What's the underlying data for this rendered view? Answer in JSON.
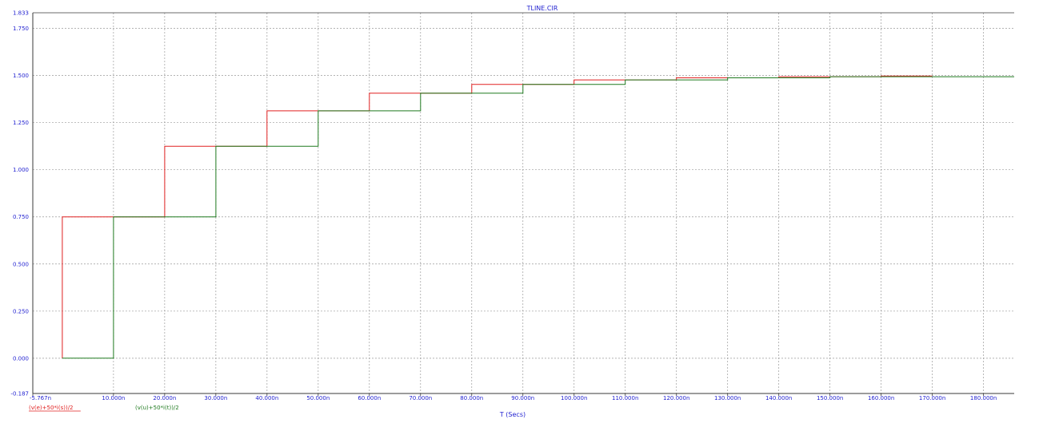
{
  "chart_data": {
    "type": "line",
    "title": "TLINE.CIR",
    "xlabel": "T (Secs)",
    "ylabel": "",
    "xlim": [
      -5.767e-09,
      1.86e-07
    ],
    "ylim": [
      -0.187,
      1.833
    ],
    "grid": true,
    "x_ticks": [
      {
        "value": -5.767e-09,
        "label": "-5.767n"
      },
      {
        "value": 1e-08,
        "label": "10.000n"
      },
      {
        "value": 2e-08,
        "label": "20.000n"
      },
      {
        "value": 3e-08,
        "label": "30.000n"
      },
      {
        "value": 4e-08,
        "label": "40.000n"
      },
      {
        "value": 5e-08,
        "label": "50.000n"
      },
      {
        "value": 6e-08,
        "label": "60.000n"
      },
      {
        "value": 7e-08,
        "label": "70.000n"
      },
      {
        "value": 8e-08,
        "label": "80.000n"
      },
      {
        "value": 9e-08,
        "label": "90.000n"
      },
      {
        "value": 1e-07,
        "label": "100.000n"
      },
      {
        "value": 1.1e-07,
        "label": "110.000n"
      },
      {
        "value": 1.2e-07,
        "label": "120.000n"
      },
      {
        "value": 1.3e-07,
        "label": "130.000n"
      },
      {
        "value": 1.4e-07,
        "label": "140.000n"
      },
      {
        "value": 1.5e-07,
        "label": "150.000n"
      },
      {
        "value": 1.6e-07,
        "label": "160.000n"
      },
      {
        "value": 1.7e-07,
        "label": "170.000n"
      },
      {
        "value": 1.8e-07,
        "label": "180.000n"
      }
    ],
    "y_ticks": [
      {
        "value": 1.833,
        "label": "1.833"
      },
      {
        "value": 1.75,
        "label": "1.750"
      },
      {
        "value": 1.5,
        "label": "1.500"
      },
      {
        "value": 1.25,
        "label": "1.250"
      },
      {
        "value": 1.0,
        "label": "1.000"
      },
      {
        "value": 0.75,
        "label": "0.750"
      },
      {
        "value": 0.5,
        "label": "0.500"
      },
      {
        "value": 0.25,
        "label": "0.250"
      },
      {
        "value": 0.0,
        "label": "0.000"
      },
      {
        "value": -0.187,
        "label": "-0.187"
      }
    ],
    "series": [
      {
        "name": "(v(e)+50*i(s))/2",
        "color": "#e02020",
        "x": [
          0,
          0,
          2e-08,
          2e-08,
          4e-08,
          4e-08,
          6e-08,
          6e-08,
          8e-08,
          8e-08,
          1e-07,
          1e-07,
          1.2e-07,
          1.2e-07,
          1.4e-07,
          1.4e-07,
          1.6e-07,
          1.6e-07,
          1.7e-07
        ],
        "values": [
          0,
          0.75,
          0.75,
          1.125,
          1.125,
          1.3125,
          1.3125,
          1.40625,
          1.40625,
          1.453,
          1.453,
          1.477,
          1.477,
          1.488,
          1.488,
          1.494,
          1.494,
          1.497,
          1.497
        ]
      },
      {
        "name": "(v(u)+50*i(t))/2",
        "color": "#1f7a1f",
        "x": [
          0,
          1e-08,
          1e-08,
          3e-08,
          3e-08,
          5e-08,
          5e-08,
          7e-08,
          7e-08,
          9e-08,
          9e-08,
          1.1e-07,
          1.1e-07,
          1.3e-07,
          1.3e-07,
          1.5e-07,
          1.5e-07,
          1.86e-07
        ],
        "values": [
          0,
          0,
          0.75,
          0.75,
          1.125,
          1.125,
          1.3125,
          1.3125,
          1.40625,
          1.40625,
          1.453,
          1.453,
          1.477,
          1.477,
          1.488,
          1.488,
          1.494,
          1.494
        ]
      }
    ],
    "legend": "bottom-left",
    "annotations": []
  },
  "colors": {
    "axis_label": "#1f1fd0",
    "grid": "#9a9a9a",
    "frame": "#3a3a3a"
  }
}
